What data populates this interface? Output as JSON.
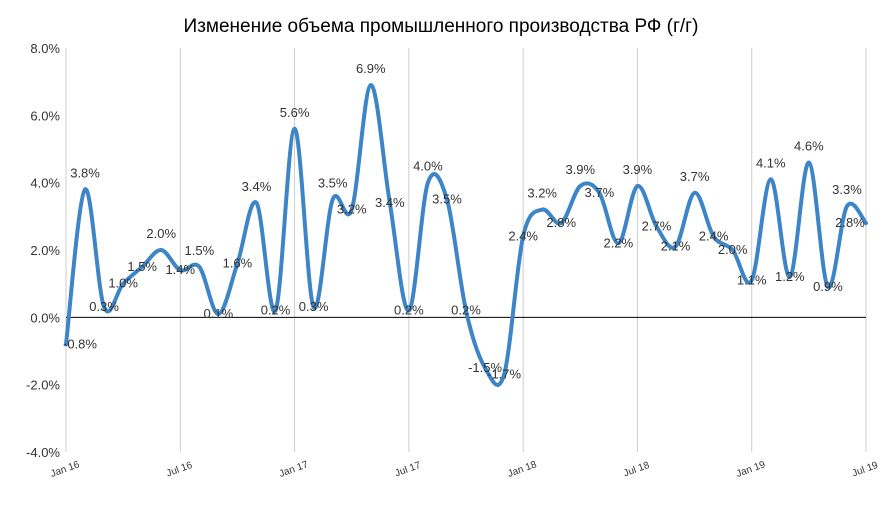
{
  "chart_data": {
    "type": "line",
    "title": "Изменение объема промышленного производства РФ (г/г)",
    "xlabel": "",
    "ylabel": "",
    "ylim": [
      -4,
      8
    ],
    "y_ticks": [
      -4,
      -2,
      0,
      2,
      4,
      6,
      8
    ],
    "y_tick_labels": [
      "-4.0%",
      "-2.0%",
      "0.0%",
      "2.0%",
      "4.0%",
      "6.0%",
      "8.0%"
    ],
    "x_tick_indices": [
      0,
      6,
      12,
      18,
      24,
      30,
      36,
      42
    ],
    "x_tick_labels": [
      "Jan 16",
      "Jul 16",
      "Jan 17",
      "Jul 17",
      "Jan 18",
      "Jul 18",
      "Jan 19",
      "Jul 19"
    ],
    "grid": "vertical",
    "legend": "none",
    "colors": {
      "line": "#3d85c6",
      "grid": "#cccccc",
      "zero_line": "#000000",
      "text": "#333333"
    },
    "x": [
      "Jan 16",
      "Feb 16",
      "Mar 16",
      "Apr 16",
      "May 16",
      "Jun 16",
      "Jul 16",
      "Aug 16",
      "Sep 16",
      "Oct 16",
      "Nov 16",
      "Dec 16",
      "Jan 17",
      "Feb 17",
      "Mar 17",
      "Apr 17",
      "May 17",
      "Jun 17",
      "Jul 17",
      "Aug 17",
      "Sep 17",
      "Oct 17",
      "Nov 17",
      "Dec 17",
      "Jan 18",
      "Feb 18",
      "Mar 18",
      "Apr 18",
      "May 18",
      "Jun 18",
      "Jul 18",
      "Aug 18",
      "Sep 18",
      "Oct 18",
      "Nov 18",
      "Dec 18",
      "Jan 19",
      "Feb 19",
      "Mar 19",
      "Apr 19",
      "May 19",
      "Jun 19",
      "Jul 19"
    ],
    "values": [
      -0.8,
      3.8,
      0.3,
      1.0,
      1.5,
      2.0,
      1.4,
      1.5,
      0.1,
      1.6,
      3.4,
      0.2,
      5.6,
      0.3,
      3.5,
      3.2,
      6.9,
      3.4,
      0.2,
      4.0,
      3.5,
      0.2,
      -1.5,
      -1.7,
      2.4,
      3.2,
      2.8,
      3.9,
      3.7,
      2.2,
      3.9,
      2.7,
      2.1,
      3.7,
      2.4,
      2.0,
      1.1,
      4.1,
      1.2,
      4.6,
      0.9,
      3.3,
      2.8
    ],
    "data_labels": [
      "-0.8%",
      "3.8%",
      "0.3%",
      "1.0%",
      "1.5%",
      "2.0%",
      "1.4%",
      "1.5%",
      "0.1%",
      "1.6%",
      "3.4%",
      "0.2%",
      "5.6%",
      "0.3%",
      "3.5%",
      "3.2%",
      "6.9%",
      "3.4%",
      "0.2%",
      "4.0%",
      "3.5%",
      "0.2%",
      "-1.5%",
      "-1.7%",
      "2.4%",
      "3.2%",
      "2.8%",
      "3.9%",
      "3.7%",
      "2.2%",
      "3.9%",
      "2.7%",
      "2.1%",
      "3.7%",
      "2.4%",
      "2.0%",
      "1.1%",
      "4.1%",
      "1.2%",
      "4.6%",
      "0.9%",
      "3.3%",
      "2.8%"
    ]
  }
}
